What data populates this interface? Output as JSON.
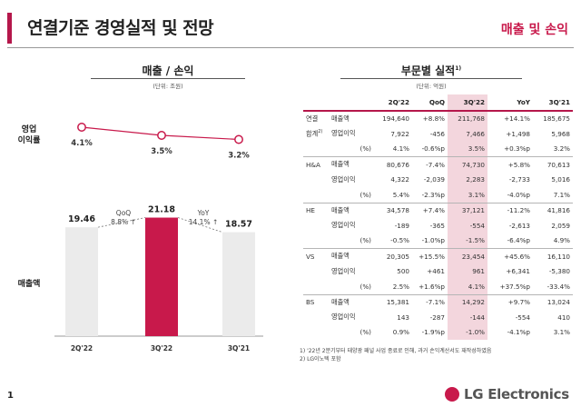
{
  "header": {
    "title": "연결기준 경영실적 및 전망",
    "section_tag": "매출 및 손익"
  },
  "left_panel": {
    "title": "매출 / 손익",
    "unit": "(단위: 조원)",
    "profit_label_line1": "영업",
    "profit_label_line2": "이익률",
    "sales_label": "매출액",
    "chart_data": {
      "type": "bar",
      "categories": [
        "2Q'22",
        "3Q'22",
        "3Q'21"
      ],
      "series": [
        {
          "name": "매출액",
          "values": [
            19.46,
            21.18,
            18.57
          ]
        },
        {
          "name": "영업이익률",
          "values": [
            4.1,
            3.5,
            3.2
          ]
        }
      ],
      "value_labels": [
        "19.46",
        "21.18",
        "18.57"
      ],
      "margin_labels": [
        "4.1%",
        "3.5%",
        "3.2%"
      ],
      "ylim": [
        0,
        25
      ],
      "highlight_index": 1,
      "colors": {
        "bar": "#ebebeb",
        "highlight": "#c8194b",
        "line": "#c8194b"
      }
    },
    "qoq": {
      "label": "QoQ",
      "value": "8.8% ↑"
    },
    "yoy": {
      "label": "YoY",
      "value": "14.1% ↑"
    }
  },
  "right_panel": {
    "title": "부문별 실적",
    "title_sup": "1)",
    "unit": "(단위: 억원)",
    "columns": [
      "2Q'22",
      "QoQ",
      "3Q'22",
      "YoY",
      "3Q'21"
    ],
    "groups": [
      {
        "seg1": "연결",
        "seg2": "합계",
        "seg2_sup": "2)",
        "rows": [
          {
            "metric": "매출액",
            "values": [
              "194,640",
              "+8.8%",
              "211,768",
              "+14.1%",
              "185,675"
            ]
          },
          {
            "metric": "영업이익",
            "values": [
              "7,922",
              "-456",
              "7,466",
              "+1,498",
              "5,968"
            ]
          },
          {
            "metric": "(%)",
            "values": [
              "4.1%",
              "-0.6%p",
              "3.5%",
              "+0.3%p",
              "3.2%"
            ]
          }
        ]
      },
      {
        "seg1": "H&A",
        "rows": [
          {
            "metric": "매출액",
            "values": [
              "80,676",
              "-7.4%",
              "74,730",
              "+5.8%",
              "70,613"
            ]
          },
          {
            "metric": "영업이익",
            "values": [
              "4,322",
              "-2,039",
              "2,283",
              "-2,733",
              "5,016"
            ]
          },
          {
            "metric": "(%)",
            "values": [
              "5.4%",
              "-2.3%p",
              "3.1%",
              "-4.0%p",
              "7.1%"
            ]
          }
        ]
      },
      {
        "seg1": "HE",
        "rows": [
          {
            "metric": "매출액",
            "values": [
              "34,578",
              "+7.4%",
              "37,121",
              "-11.2%",
              "41,816"
            ]
          },
          {
            "metric": "영업이익",
            "values": [
              "-189",
              "-365",
              "-554",
              "-2,613",
              "2,059"
            ]
          },
          {
            "metric": "(%)",
            "values": [
              "-0.5%",
              "-1.0%p",
              "-1.5%",
              "-6.4%p",
              "4.9%"
            ]
          }
        ]
      },
      {
        "seg1": "VS",
        "rows": [
          {
            "metric": "매출액",
            "values": [
              "20,305",
              "+15.5%",
              "23,454",
              "+45.6%",
              "16,110"
            ]
          },
          {
            "metric": "영업이익",
            "values": [
              "500",
              "+461",
              "961",
              "+6,341",
              "-5,380"
            ]
          },
          {
            "metric": "(%)",
            "values": [
              "2.5%",
              "+1.6%p",
              "4.1%",
              "+37.5%p",
              "-33.4%"
            ]
          }
        ]
      },
      {
        "seg1": "BS",
        "rows": [
          {
            "metric": "매출액",
            "values": [
              "15,381",
              "-7.1%",
              "14,292",
              "+9.7%",
              "13,024"
            ]
          },
          {
            "metric": "영업이익",
            "values": [
              "143",
              "-287",
              "-144",
              "-554",
              "410"
            ]
          },
          {
            "metric": "(%)",
            "values": [
              "0.9%",
              "-1.9%p",
              "-1.0%",
              "-4.1%p",
              "3.1%"
            ]
          }
        ]
      }
    ],
    "footnotes": [
      "1) '22년 2분기부터 태양광 패널 사업 종료로 인해, 과거 손익계산서도 재작성하였음",
      "2) LG이노텍 포함"
    ]
  },
  "footer": {
    "page_number": "1",
    "brand": "LG Electronics",
    "logo_text": "LG"
  }
}
